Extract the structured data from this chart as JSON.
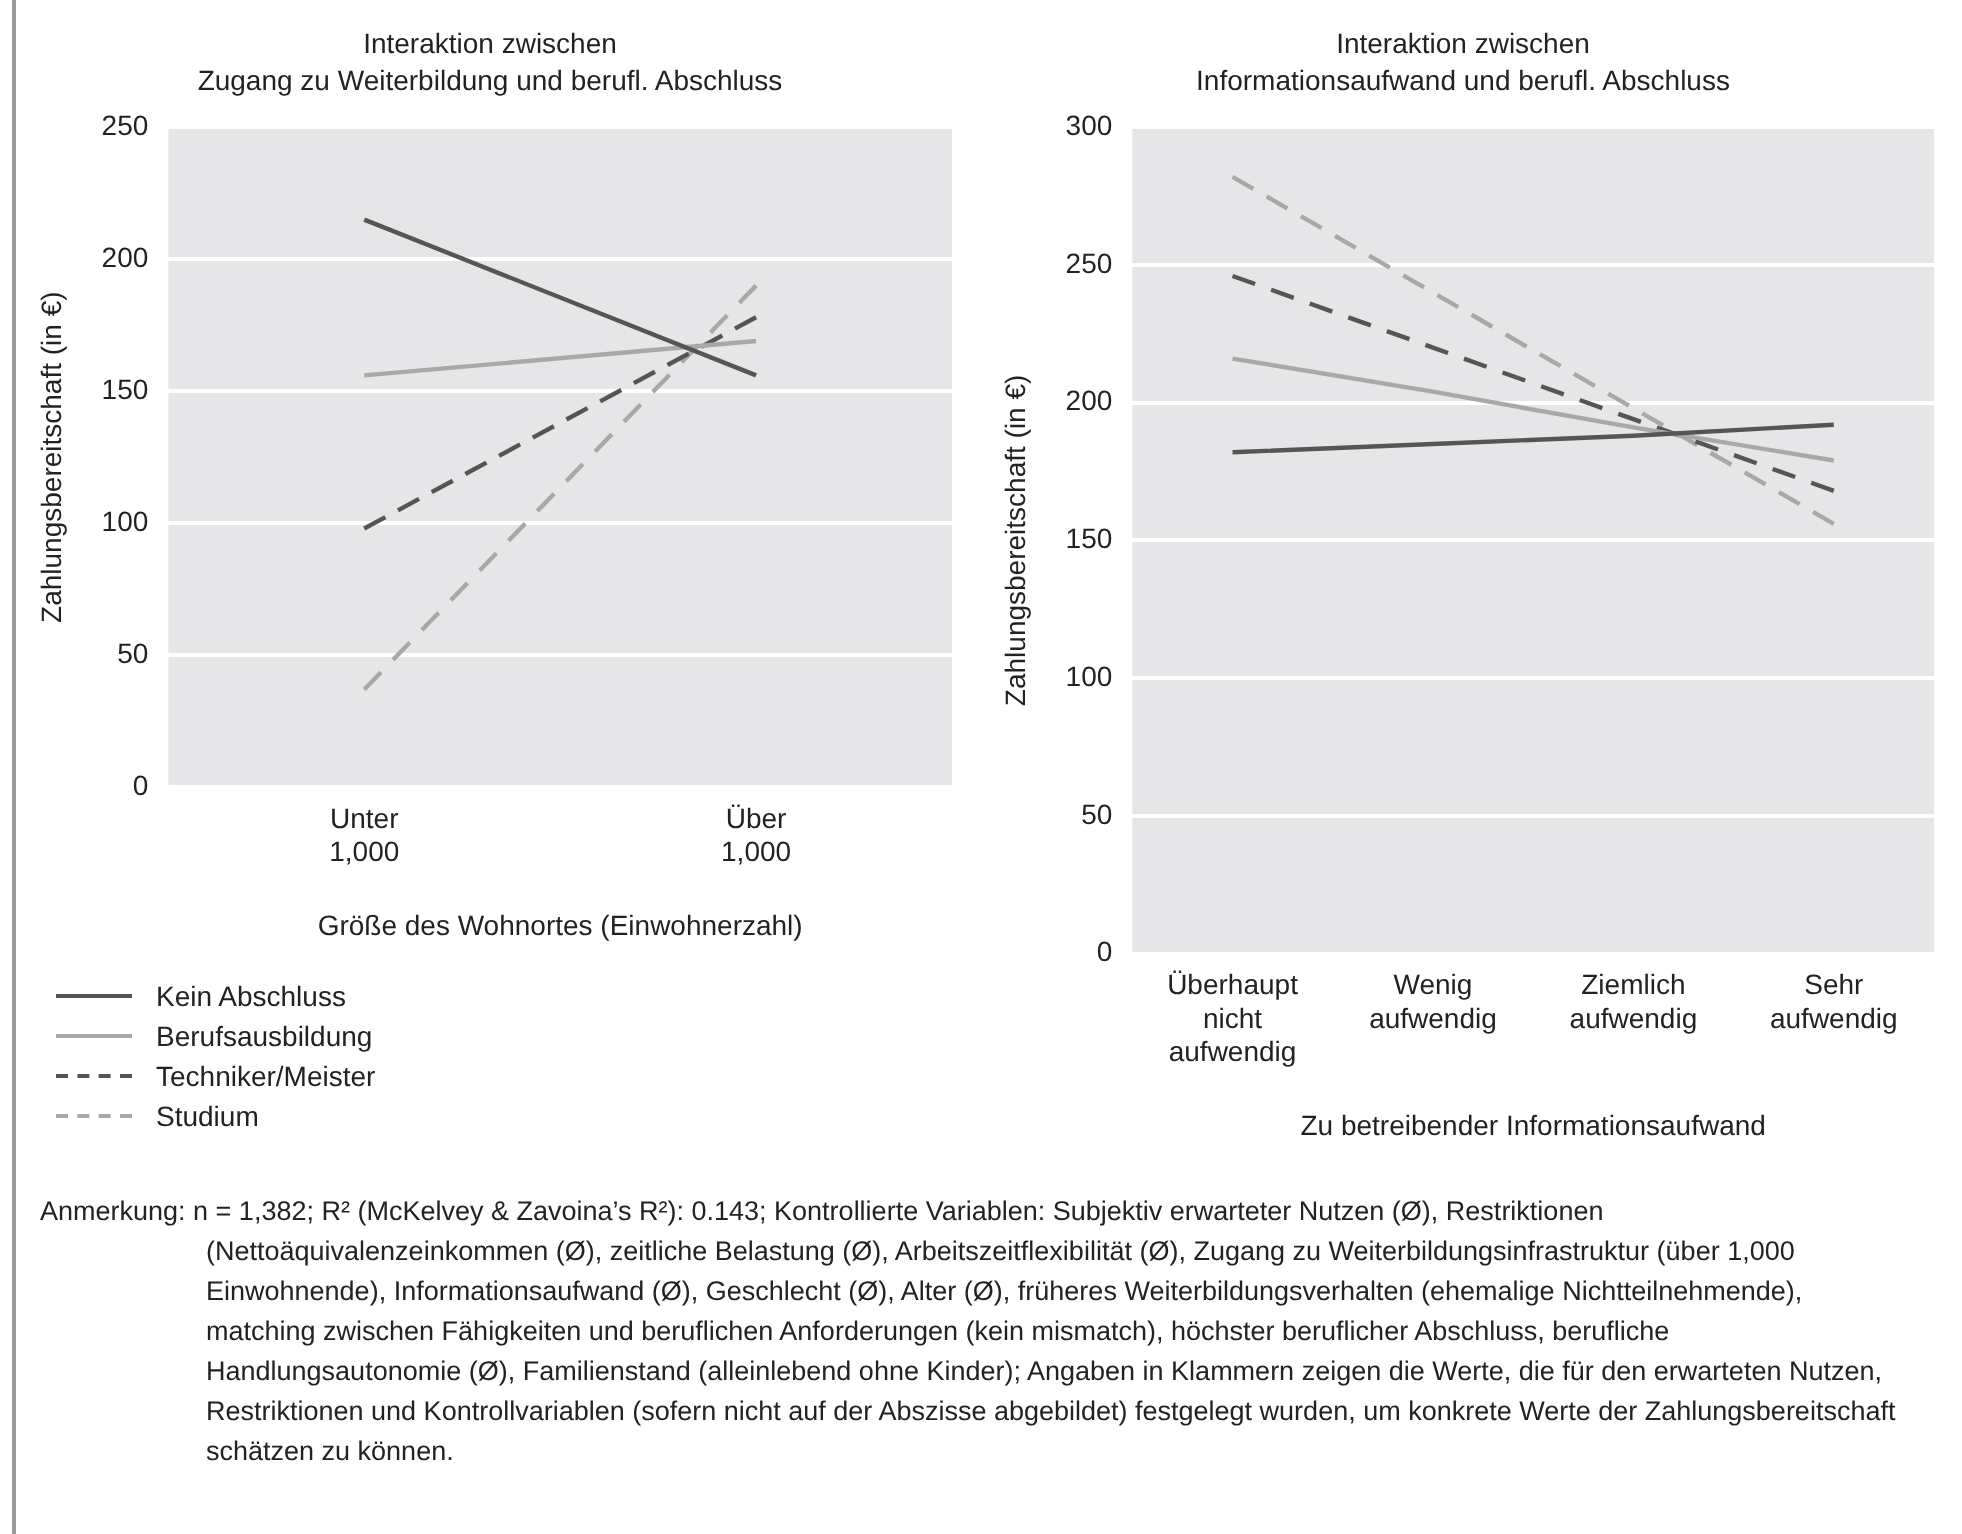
{
  "chart_data": [
    {
      "type": "line",
      "title": "Interaktion zwischen",
      "subtitle": "Zugang zu Weiterbildung und berufl. Abschluss",
      "xlabel": "Größe des Wohnortes (Einwohnerzahl)",
      "ylabel": "Zahlungsbereitschaft (in €)",
      "categories": [
        "Unter 1,000",
        "Über 1,000"
      ],
      "series": [
        {
          "name": "Kein Abschluss",
          "color": "#555555",
          "line_style": "solid",
          "values": [
            215,
            156
          ]
        },
        {
          "name": "Berufsausbildung",
          "color": "#a8a8a8",
          "line_style": "solid",
          "values": [
            156,
            169
          ]
        },
        {
          "name": "Techniker/Meister",
          "color": "#555555",
          "line_style": "dashed",
          "values": [
            98,
            178
          ]
        },
        {
          "name": "Studium",
          "color": "#a8a8a8",
          "line_style": "dashed",
          "values": [
            37,
            190
          ]
        }
      ],
      "ylim": [
        0,
        250
      ],
      "yticks": [
        0,
        50,
        100,
        150,
        200,
        250
      ],
      "grid": "y",
      "legend": "bottom",
      "marker": "none",
      "annotations": [
        "Anmerkung: n = 1,382; R² (McKelvey & Zavoina’s R²): 0.143; Kontrollierte Variablen: Subjektiv erwarteter Nutzen (Ø), Restriktionen (Nettoäquivalenzeinkommen (Ø), zeitliche Belastung (Ø), Arbeitszeitflexibilität (Ø), Zugang zu Weiterbildungsinfrastruktur (über 1,000 Einwohnende), Informationsaufwand (Ø), Geschlecht (Ø), Alter (Ø), früheres Weiterbildungsverhalten (ehemalige Nichtteilnehmende), matching zwischen Fähigkeiten und beruflichen Anforderungen (kein mismatch), höchster beruflicher Abschluss, berufliche Handlungsautonomie (Ø), Familienstand (alleinlebend ohne Kinder); Angaben in Klammern zeigen die Werte, die für den erwarteten Nutzen, Restriktionen und Kontrollvariablen (sofern nicht auf der Abszisse abgebildet) festgelegt wurden, um konkrete Werte der Zahlungsbereitschaft schätzen zu können."
      ]
    },
    {
      "type": "line",
      "title": "Interaktion zwischen",
      "subtitle": "Informationsaufwand und berufl. Abschluss",
      "xlabel": "Zu betreibender Informationsaufwand",
      "ylabel": "Zahlungsbereitschaft (in €)",
      "categories": [
        "Überhaupt nicht aufwendig",
        "Wenig aufwendig",
        "Ziemlich aufwendig",
        "Sehr aufwendig"
      ],
      "series": [
        {
          "color": "#555555",
          "line_style": "solid",
          "values": [
            182,
            185,
            188,
            192
          ]
        },
        {
          "color": "#a8a8a8",
          "line_style": "solid",
          "values": [
            216,
            204,
            191,
            179
          ]
        },
        {
          "color": "#555555",
          "line_style": "dashed",
          "values": [
            246,
            220,
            194,
            168
          ]
        },
        {
          "color": "#a8a8a8",
          "line_style": "dashed",
          "values": [
            282,
            240,
            198,
            156
          ]
        }
      ],
      "ylim": [
        0,
        300
      ],
      "yticks": [
        0,
        50,
        100,
        150,
        200,
        250,
        300
      ],
      "grid": "y",
      "marker": "none"
    }
  ]
}
